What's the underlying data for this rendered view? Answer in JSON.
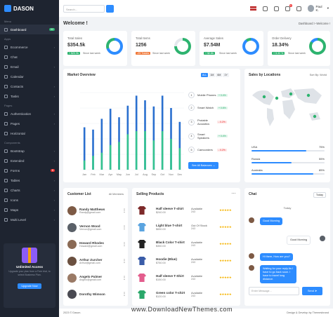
{
  "brand": "DASON",
  "search": {
    "placeholder": "Search..."
  },
  "user": "Paul K.",
  "notif_count": "5",
  "sidebar": {
    "sec_menu": "Menu",
    "sec_apps": "Apps",
    "sec_pages": "Pages",
    "sec_components": "Components",
    "items": [
      {
        "label": "Dashboard",
        "badge": "02"
      },
      {
        "label": "Ecommerce"
      },
      {
        "label": "Chat"
      },
      {
        "label": "Email"
      },
      {
        "label": "Calendar"
      },
      {
        "label": "Contacts"
      },
      {
        "label": "Tasks"
      },
      {
        "label": "Authentication"
      },
      {
        "label": "Pages"
      },
      {
        "label": "Horizontal"
      },
      {
        "label": "Bootstrap"
      },
      {
        "label": "Extended"
      },
      {
        "label": "Forms",
        "badge": "8"
      },
      {
        "label": "Tables"
      },
      {
        "label": "Charts"
      },
      {
        "label": "Icons"
      },
      {
        "label": "Maps"
      },
      {
        "label": "Multi Level"
      }
    ]
  },
  "promo": {
    "title": "Unlimited Access",
    "desc": "Upgrade your plan from a Free trial, to select Business Plan.",
    "button": "Upgrade Now"
  },
  "page": {
    "title": "Welcome !",
    "crumb": "Dashboard  >  Welcome !"
  },
  "stats": [
    {
      "title": "Total Sales",
      "value": "$354.5k",
      "badge": "+ $20.9k",
      "since": "Since last week",
      "color": "#2db36f",
      "pct": 70
    },
    {
      "title": "Total Items",
      "value": "1256",
      "badge": "-29 Trades",
      "since": "Since last week",
      "color": "#f07a3c",
      "pct": 75
    },
    {
      "title": "Average Sales",
      "value": "$7.54M",
      "badge": "+ $2.8k",
      "since": "Since last week",
      "color": "#2db36f",
      "pct": 90
    },
    {
      "title": "Order Delivery",
      "value": "18.34%",
      "badge": "+ 5.32 %",
      "since": "Since last week",
      "color": "#2db36f",
      "pct": 85
    }
  ],
  "market": {
    "title": "Market Overview",
    "ranges": [
      "ALL",
      "1M",
      "6M",
      "1Y"
    ],
    "months": [
      "Jan",
      "Feb",
      "Mar",
      "Apr",
      "May",
      "Jun",
      "Jul",
      "Aug",
      "Sep",
      "Oct",
      "Nov",
      "Dec"
    ],
    "products": [
      {
        "n": "1",
        "name": "Mobile Phones",
        "pct": "+ 0.4%"
      },
      {
        "n": "2",
        "name": "Smart Watch",
        "pct": "+ 0.6%"
      },
      {
        "n": "3",
        "name": "Protable Acoustics",
        "pct": "- 0.2%"
      },
      {
        "n": "4",
        "name": "Smart Speakers",
        "pct": "+ 0.4%"
      },
      {
        "n": "5",
        "name": "Camcorders",
        "pct": "- 0.2%"
      }
    ],
    "button": "See All Balances  →"
  },
  "chart_data": {
    "type": "bar",
    "categories": [
      "Jan",
      "Feb",
      "Mar",
      "Apr",
      "May",
      "Jun",
      "Jul",
      "Aug",
      "Sep",
      "Oct",
      "Nov",
      "Dec"
    ],
    "series": [
      {
        "values": [
          55,
          52,
          66,
          79,
          68,
          83,
          96,
          90,
          82,
          96,
          80,
          62
        ]
      },
      {
        "values": [
          12,
          18,
          22,
          32,
          36,
          46,
          50,
          50,
          38,
          50,
          40,
          28
        ]
      }
    ],
    "ylim": [
      0,
      100
    ]
  },
  "locations": {
    "title": "Sales by Locations",
    "sort": "Sort By: World",
    "rows": [
      {
        "name": "USA",
        "pct": "75%",
        "v": 75
      },
      {
        "name": "Russia",
        "pct": "55%",
        "v": 55
      },
      {
        "name": "Australia",
        "pct": "85%",
        "v": 85
      }
    ]
  },
  "customers": {
    "title": "Customer List",
    "filter": "All Members",
    "rows": [
      {
        "name": "Randy Matthews",
        "email": "Randy@gmail.com"
      },
      {
        "name": "Vernon Wood",
        "email": "Vernon@gmail.com"
      },
      {
        "name": "Howard Rhodes",
        "email": "Howard@gmail.com"
      },
      {
        "name": "Arthur Zurcher",
        "email": "Arthur@gmail.com"
      },
      {
        "name": "Angelo Palmer",
        "email": "Angelo@gmail.com"
      },
      {
        "name": "Dorothy Wimson",
        "email": "Dorothy@gmail.com"
      }
    ]
  },
  "selling": {
    "title": "Selling Products",
    "rows": [
      {
        "name": "Half sleeve T-shirt",
        "price": "$240.00",
        "avail": "Available",
        "count": "243",
        "color": "#7d2a2a"
      },
      {
        "name": "Light blue T-shirt",
        "price": "$650.00",
        "avail": "Out Of Stock",
        "count": "243",
        "color": "#5aa4e0"
      },
      {
        "name": "Black Color T-shirt",
        "price": "$350.00",
        "avail": "Available",
        "count": "243",
        "color": "#222"
      },
      {
        "name": "Hoodie (Blue)",
        "price": "$750.00",
        "avail": "Available",
        "count": "243",
        "color": "#3a5ca8"
      },
      {
        "name": "Half sleeve T-Shirt",
        "price": "$150.00",
        "avail": "Available",
        "count": "243",
        "color": "#e35d8d"
      },
      {
        "name": "Green color T-shirt",
        "price": "$120.00",
        "avail": "Available",
        "count": "243",
        "color": "#2aa86a"
      }
    ]
  },
  "chat": {
    "title": "Chat",
    "filter": "Today",
    "day": "Today",
    "msgs": [
      "Good Morning",
      "Good Morning",
      "Hi there, How are you?",
      "Waiting for your reply As I have to go back soon. I have to travel long distance."
    ],
    "placeholder": "Enter Message...",
    "send": "Send"
  },
  "footer": {
    "left": "2023 © Dason.",
    "right": "Design & Develop by Themesbrand"
  },
  "watermark": "www.DownloadNewThemes.com"
}
